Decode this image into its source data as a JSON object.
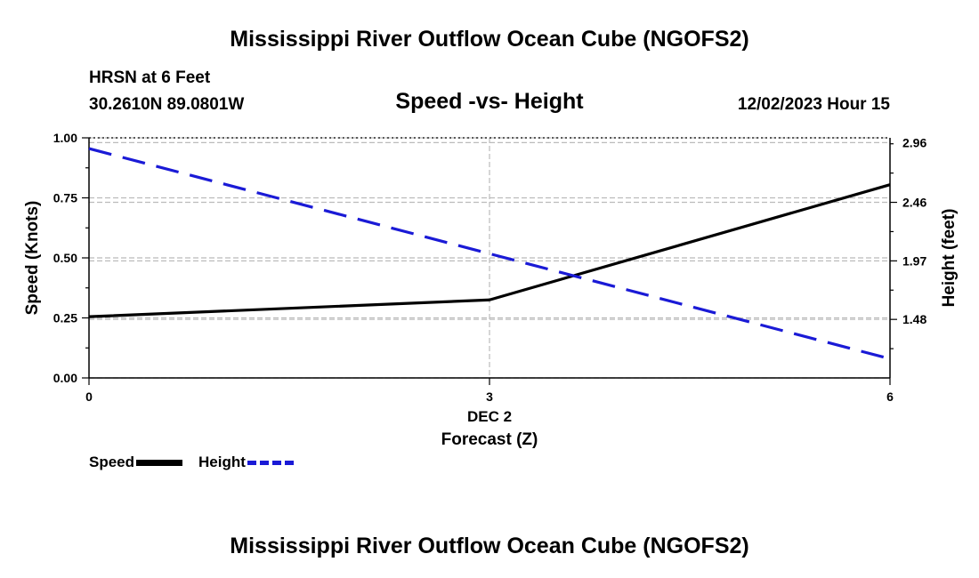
{
  "header": {
    "main_title": "Mississippi River Outflow Ocean Cube (NGOFS2)",
    "station": "HRSN at 6 Feet",
    "coords": "30.2610N  89.0801W",
    "subtitle": "Speed -vs- Height",
    "datetime": "12/02/2023 Hour 15"
  },
  "footer": {
    "main_title": "Mississippi River Outflow Ocean Cube (NGOFS2)"
  },
  "legend": {
    "speed_label": "Speed",
    "height_label": "Height"
  },
  "colors": {
    "speed": "#000000",
    "height": "#1a1ad6",
    "grid": "#bbbbbb"
  },
  "chart_data": {
    "type": "line",
    "title": "Speed -vs- Height",
    "xlabel": "Forecast (Z)",
    "xsub": "DEC 2",
    "ylabel": "Speed (Knots)",
    "y2label": "Height (feet)",
    "xlim": [
      0,
      6
    ],
    "ylim": [
      0,
      1
    ],
    "y2lim": [
      0.99,
      3.0
    ],
    "xticks": [
      0,
      3,
      6
    ],
    "xtick_labels": [
      "0",
      "3",
      "6"
    ],
    "yticks": [
      0,
      0.25,
      0.5,
      0.75,
      1.0
    ],
    "ytick_labels": [
      "0.00",
      "0.25",
      "0.50",
      "0.75",
      "1.00"
    ],
    "y2ticks": [
      1.48,
      1.97,
      2.46,
      2.96
    ],
    "y2tick_labels": [
      "1.48",
      "1.97",
      "2.46",
      "2.96"
    ],
    "series": [
      {
        "name": "Speed",
        "axis": "left",
        "style": "solid",
        "x": [
          0,
          3,
          6
        ],
        "values": [
          0.255,
          0.325,
          0.805
        ]
      },
      {
        "name": "Height",
        "axis": "right",
        "style": "dashed",
        "x": [
          0,
          6
        ],
        "values": [
          2.91,
          1.15
        ]
      }
    ]
  }
}
